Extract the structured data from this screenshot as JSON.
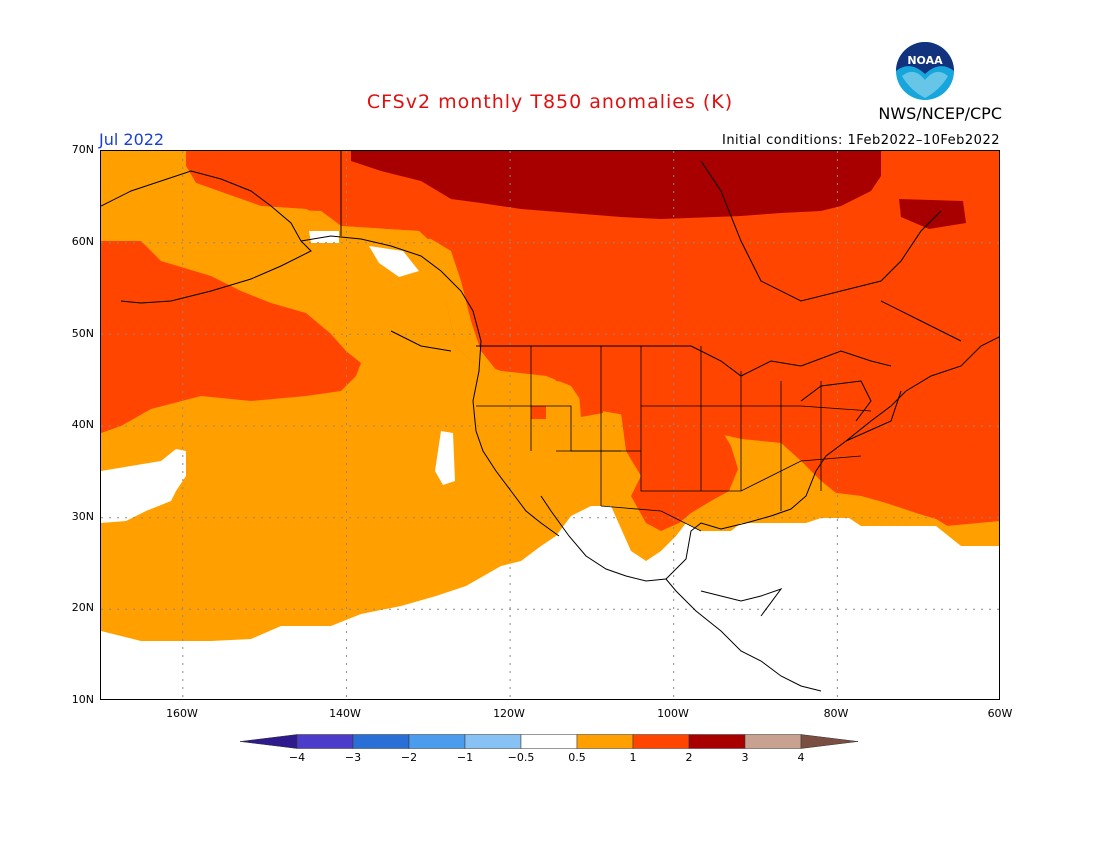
{
  "header": {
    "title": "CFSv2 monthly T850 anomalies (K)",
    "organization": "NWS/NCEP/CPC",
    "valid_month": "Jul 2022",
    "initial_conditions": "Initial conditions: 1Feb2022–10Feb2022",
    "logo_text": "NOAA"
  },
  "map": {
    "latitude_labels": [
      "70N",
      "60N",
      "50N",
      "40N",
      "30N",
      "20N",
      "10N"
    ],
    "longitude_labels": [
      "160W",
      "140W",
      "120W",
      "100W",
      "80W",
      "60W"
    ],
    "extent": {
      "lon_min": -170,
      "lon_max": -60,
      "lat_min": 10,
      "lat_max": 70
    }
  },
  "colorbar": {
    "unit": "K",
    "tick_labels": [
      "−4",
      "−3",
      "−2",
      "−1",
      "−0.5",
      "0.5",
      "1",
      "2",
      "3",
      "4"
    ],
    "colors": [
      "#2e1a8c",
      "#4b3cc9",
      "#2a6fd6",
      "#4c9cee",
      "#88c1f3",
      "#ffffff",
      "#ffa000",
      "#ff4500",
      "#a80000",
      "#c8a190",
      "#7a4e40"
    ]
  },
  "colors": {
    "anomaly_0_5_to_1": "#ffa000",
    "anomaly_1_to_2": "#ff4500",
    "anomaly_2_to_3": "#a80000",
    "title": "#e01010",
    "month": "#1a3fd6"
  }
}
